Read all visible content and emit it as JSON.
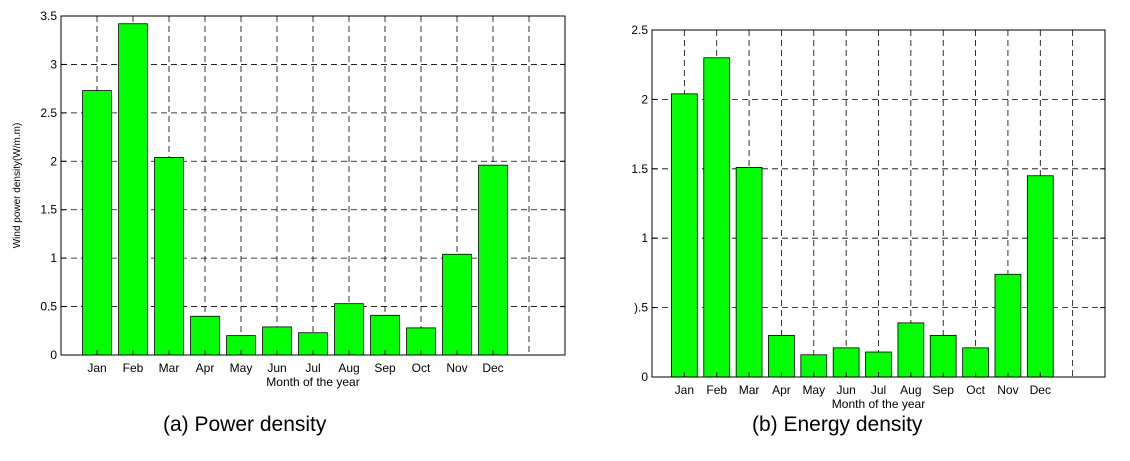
{
  "chart_data": [
    {
      "type": "bar",
      "caption": "(a) Power density",
      "xlabel": "Month of the year",
      "ylabel": "Wind power density(W/m.m)",
      "categories": [
        "Jan",
        "Feb",
        "Mar",
        "Apr",
        "May",
        "Jun",
        "Jul",
        "Aug",
        "Sep",
        "Oct",
        "Nov",
        "Dec"
      ],
      "values": [
        2.73,
        3.42,
        2.04,
        0.4,
        0.2,
        0.29,
        0.23,
        0.53,
        0.41,
        0.28,
        1.04,
        1.96
      ],
      "ylim": [
        0,
        3.5
      ],
      "yticks": [
        "0",
        "0.5",
        "1",
        "1.5",
        "2",
        "2.5",
        "3",
        "3.5"
      ],
      "grid": true,
      "bar_color": "#00ff00"
    },
    {
      "type": "bar",
      "caption": "(b) Energy density",
      "xlabel": "Month of the year",
      "ylabel": "",
      "categories": [
        "Jan",
        "Feb",
        "Mar",
        "Apr",
        "May",
        "Jun",
        "Jul",
        "Aug",
        "Sep",
        "Oct",
        "Nov",
        "Dec"
      ],
      "values": [
        2.04,
        2.3,
        1.51,
        0.3,
        0.16,
        0.21,
        0.18,
        0.39,
        0.3,
        0.21,
        0.74,
        1.45
      ],
      "ylim": [
        0,
        2.5
      ],
      "yticks": [
        "0",
        ").5",
        "1",
        "1.5",
        "2",
        "2.5"
      ],
      "grid": true,
      "bar_color": "#00ff00"
    }
  ]
}
